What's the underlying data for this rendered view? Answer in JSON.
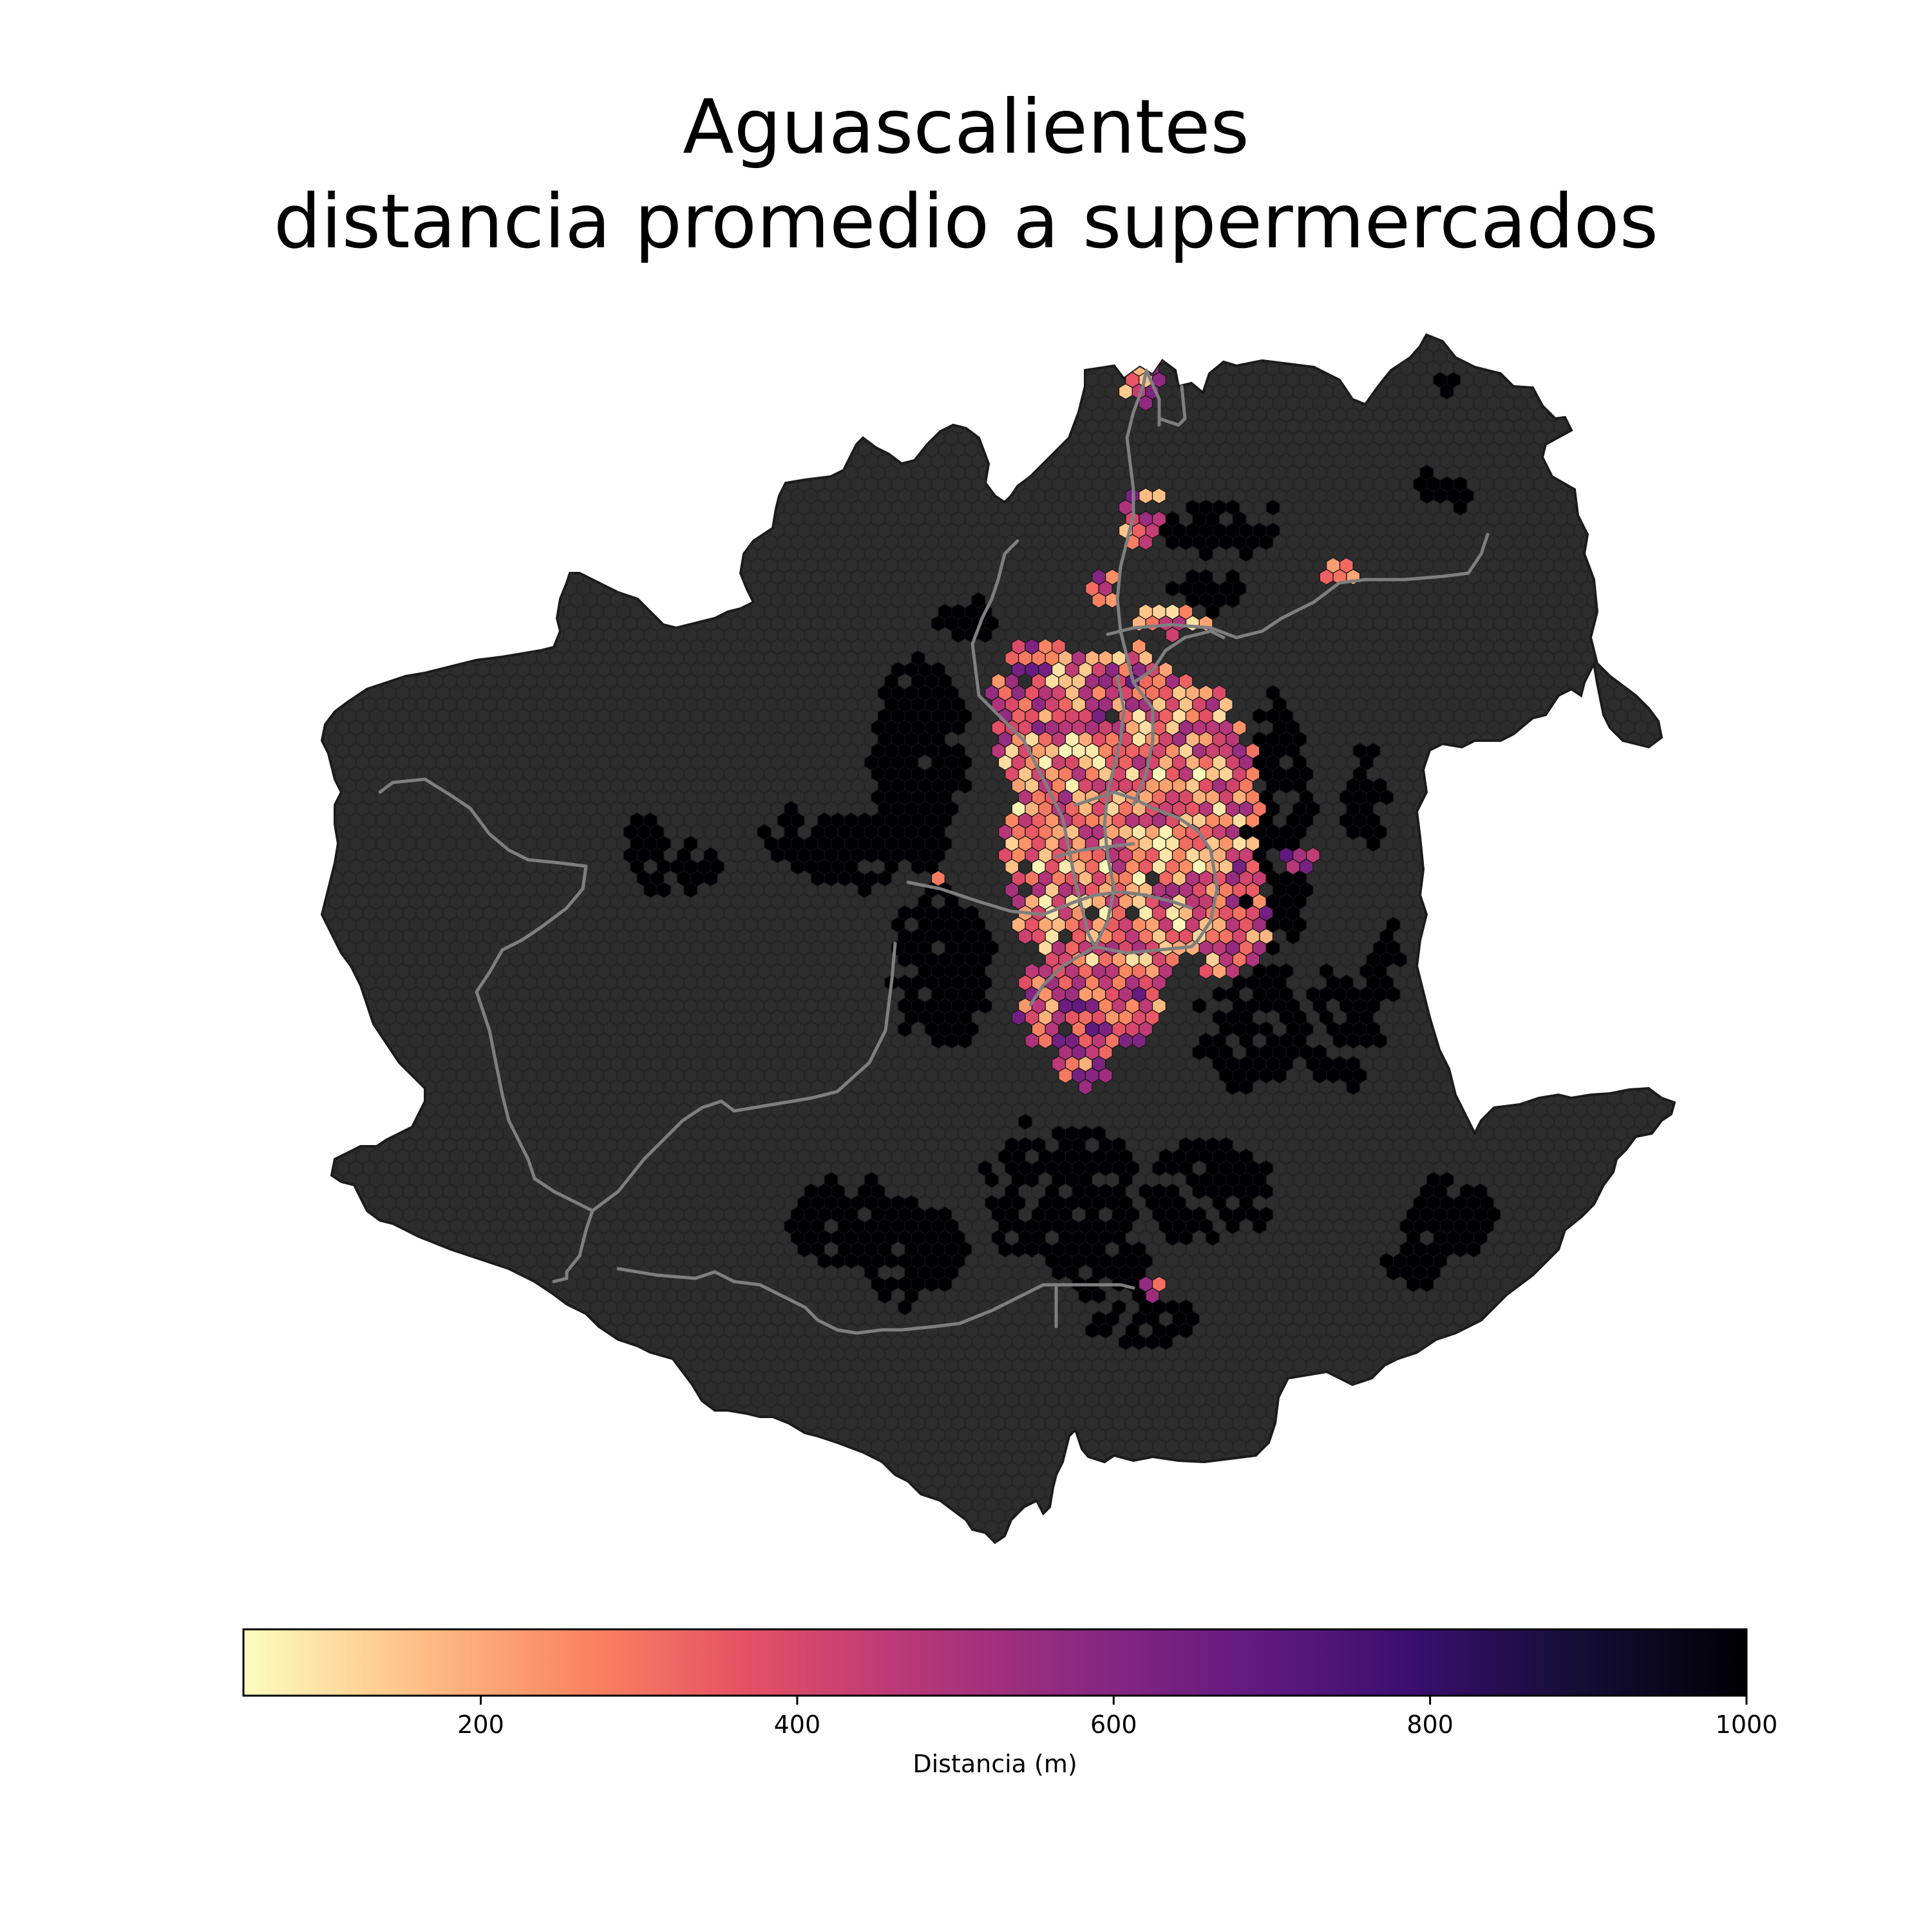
{
  "title": {
    "line1": "Aguascalientes",
    "line2": "distancia promedio a supermercados"
  },
  "map": {
    "region_fill": "#2d2d2d",
    "region_edge": "#1a1a1a",
    "road_color": "#7f7f7f",
    "colormap": "magma_r",
    "far_color": "#000004"
  },
  "colorbar": {
    "label": "Distancia (m)",
    "vmin": 50,
    "vmax": 1000,
    "ticks": [
      200,
      400,
      600,
      800,
      1000
    ],
    "tick_labels": [
      "200",
      "400",
      "600",
      "800",
      "1000"
    ],
    "stops": [
      "#fcfdbf",
      "#fec287",
      "#fb8761",
      "#e65164",
      "#b73779",
      "#8c2981",
      "#641a80",
      "#3b0f70",
      "#140e36",
      "#000004"
    ]
  }
}
